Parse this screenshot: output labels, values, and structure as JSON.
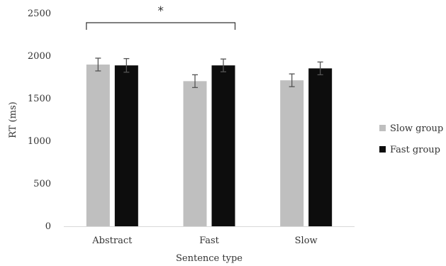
{
  "chart_data": {
    "type": "bar",
    "title": "",
    "xlabel": "Sentence type",
    "ylabel": "RT (ms)",
    "ylim": [
      0,
      2500
    ],
    "yticks": [
      0,
      500,
      1000,
      1500,
      2000,
      2500
    ],
    "grid": false,
    "legend_position": "right",
    "categories": [
      "Abstract",
      "Fast",
      "Slow"
    ],
    "series": [
      {
        "name": "Slow group",
        "color": "#bfbfbf",
        "values": [
          1900,
          1705,
          1715
        ],
        "errors": [
          75,
          75,
          75
        ]
      },
      {
        "name": "Fast group",
        "color": "#0d0d0d",
        "values": [
          1890,
          1890,
          1855
        ],
        "errors": [
          80,
          75,
          75
        ]
      }
    ],
    "annotations": [
      {
        "text": "*",
        "type": "significance-bracket",
        "from_category": "Abstract",
        "to_category": "Fast"
      }
    ]
  }
}
